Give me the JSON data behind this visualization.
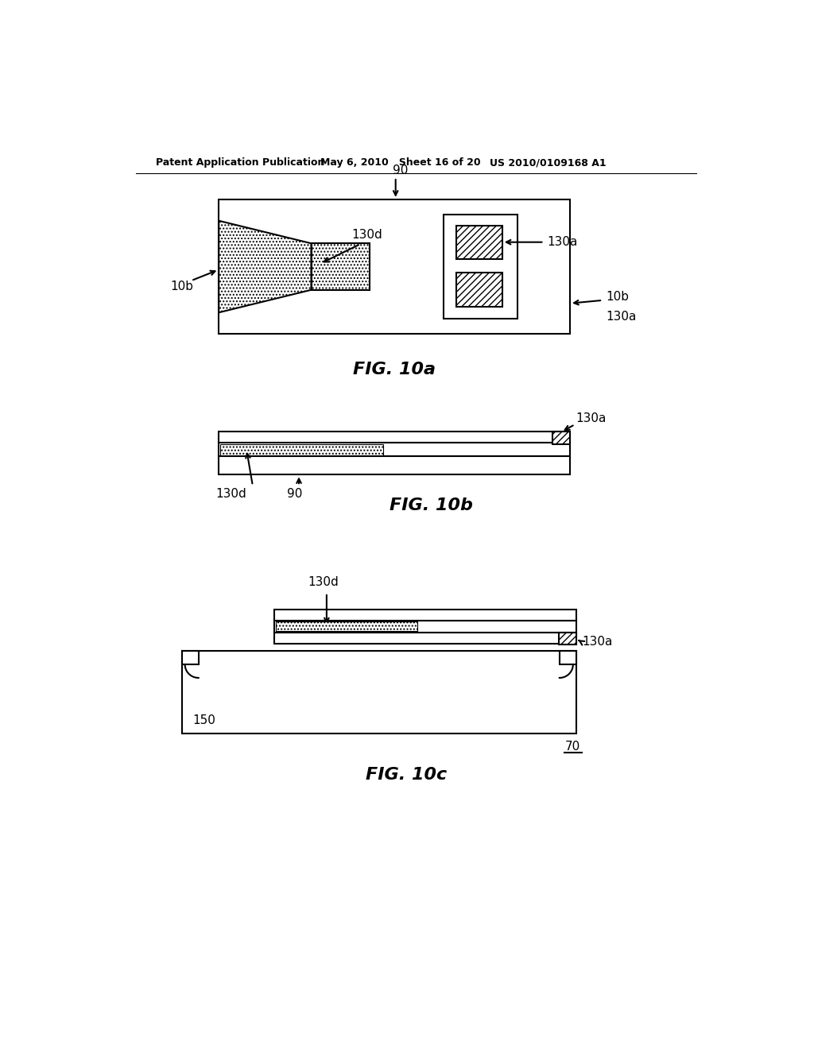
{
  "bg_color": "#ffffff",
  "line_color": "#000000",
  "header_left": "Patent Application Publication",
  "header_mid": "May 6, 2010   Sheet 16 of 20",
  "header_right": "US 2010/0109168 A1",
  "fig10a_label": "FIG. 10a",
  "fig10b_label": "FIG. 10b",
  "fig10c_label": "FIG. 10c",
  "lw": 1.5,
  "hatch_dots": "....",
  "hatch_diag": "////"
}
